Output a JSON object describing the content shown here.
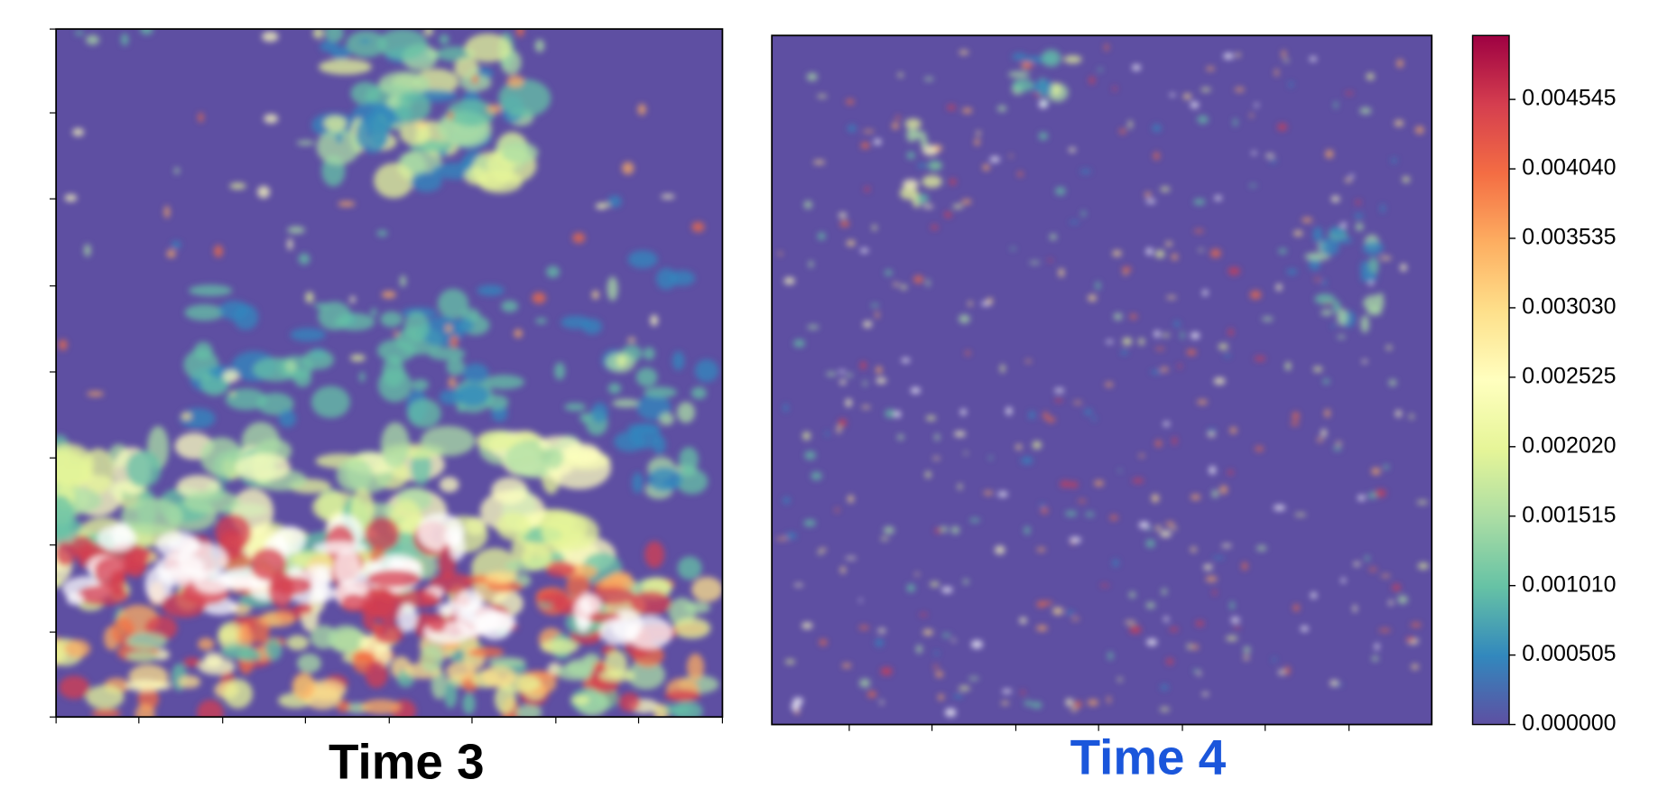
{
  "chart_data": [
    {
      "type": "heatmap",
      "title": "Time 3",
      "title_color": "#000000"
    },
    {
      "type": "heatmap",
      "title": "Time 4",
      "title_color": "#1a56db"
    }
  ],
  "colorbar": {
    "ylim": [
      0,
      0.00501
    ],
    "colors": [
      "#5e4fa2",
      "#3288bd",
      "#66c2a5",
      "#abdda4",
      "#e6f598",
      "#ffffbf",
      "#fee08b",
      "#fdae61",
      "#f46d43",
      "#d53e4f",
      "#9e0142"
    ],
    "yticks": [
      {
        "value": 0,
        "label": "0.000000"
      },
      0.000505,
      {
        "value": 0.00101,
        "label": "0.001010"
      },
      0.001515,
      {
        "value": 0.00202,
        "label": "0.002020"
      },
      0.002525,
      {
        "value": 0.00303,
        "label": "0.003030"
      },
      0.003535,
      {
        "value": 0.00404,
        "label": "0.004040"
      },
      0.004545
    ]
  }
}
